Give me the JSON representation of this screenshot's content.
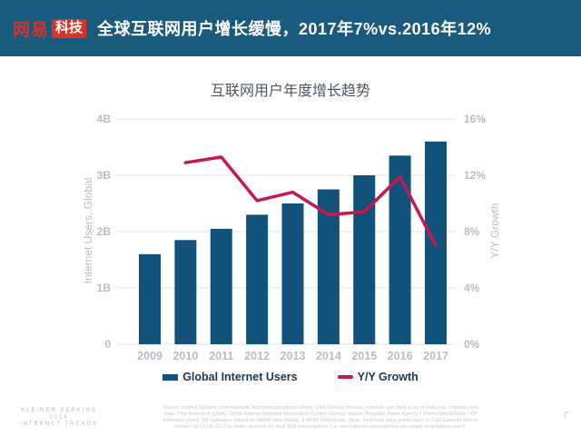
{
  "header": {
    "logo_netease": "网易",
    "logo_tech": "科技",
    "title": "全球互联网用户增长缓慢，2017年7%vs.2016年12%"
  },
  "chart_data": {
    "type": "bar+line",
    "title": "互联网用户年度增长趋势",
    "categories": [
      "2009",
      "2010",
      "2011",
      "2012",
      "2013",
      "2014",
      "2015",
      "2016",
      "2017"
    ],
    "series": [
      {
        "name": "Global Internet Users",
        "type": "bar",
        "axis": "left",
        "unit": "B",
        "values": [
          1.6,
          1.85,
          2.05,
          2.3,
          2.5,
          2.75,
          3.0,
          3.35,
          3.6
        ]
      },
      {
        "name": "Y/Y Growth",
        "type": "line",
        "axis": "right",
        "unit": "%",
        "values": [
          null,
          12.9,
          13.3,
          10.2,
          10.8,
          9.2,
          9.4,
          11.9,
          7.0
        ]
      }
    ],
    "left_axis": {
      "label": "Internet Users, Global",
      "ticks": [
        "0",
        "1B",
        "2B",
        "3B",
        "4B"
      ],
      "values": [
        0,
        1,
        2,
        3,
        4
      ],
      "range": [
        0,
        4
      ]
    },
    "right_axis": {
      "label": "Y/Y Growth",
      "ticks": [
        "0%",
        "4%",
        "8%",
        "12%",
        "16%"
      ],
      "values": [
        0,
        4,
        8,
        12,
        16
      ],
      "range": [
        0,
        16
      ]
    },
    "grid": true,
    "legend_position": "bottom"
  },
  "footer": {
    "brand_lines": [
      "KLEINER PERKINS",
      "2018",
      "INTERNET TRENDS"
    ],
    "source_lines": [
      "Source: United Nations / International Telecommunications Union, USA Census Bureau. Internet user data is as of mid-year. Internet user",
      "data: Pew Research (USA), China Internet Network Information Center (China), Islamic Republic News Agency / InternetWorldStats / KP",
      "estimates (Iran), KP estimates based on IAMAI data (India), & APJII (Indonesia). Note: Historical data (particularly in Sub-Saharan Africa)",
      "revised by ITU in 2017 to better account for dual-SIM subscriptions (i.e. two Internet subscriptions per single smartphone user)."
    ],
    "page_number": "7"
  },
  "colors": {
    "header_bg": "#1a5a7e",
    "logo_red": "#d93226",
    "bar": "#11517a",
    "line": "#c41a4f",
    "grid": "#e3e4e6",
    "tick": "#b6bdc3",
    "chart_title": "#4c5761",
    "legend_text": "#21374d",
    "footer_text": "#c3c7ca",
    "brand_text": "#b4b8bc"
  }
}
